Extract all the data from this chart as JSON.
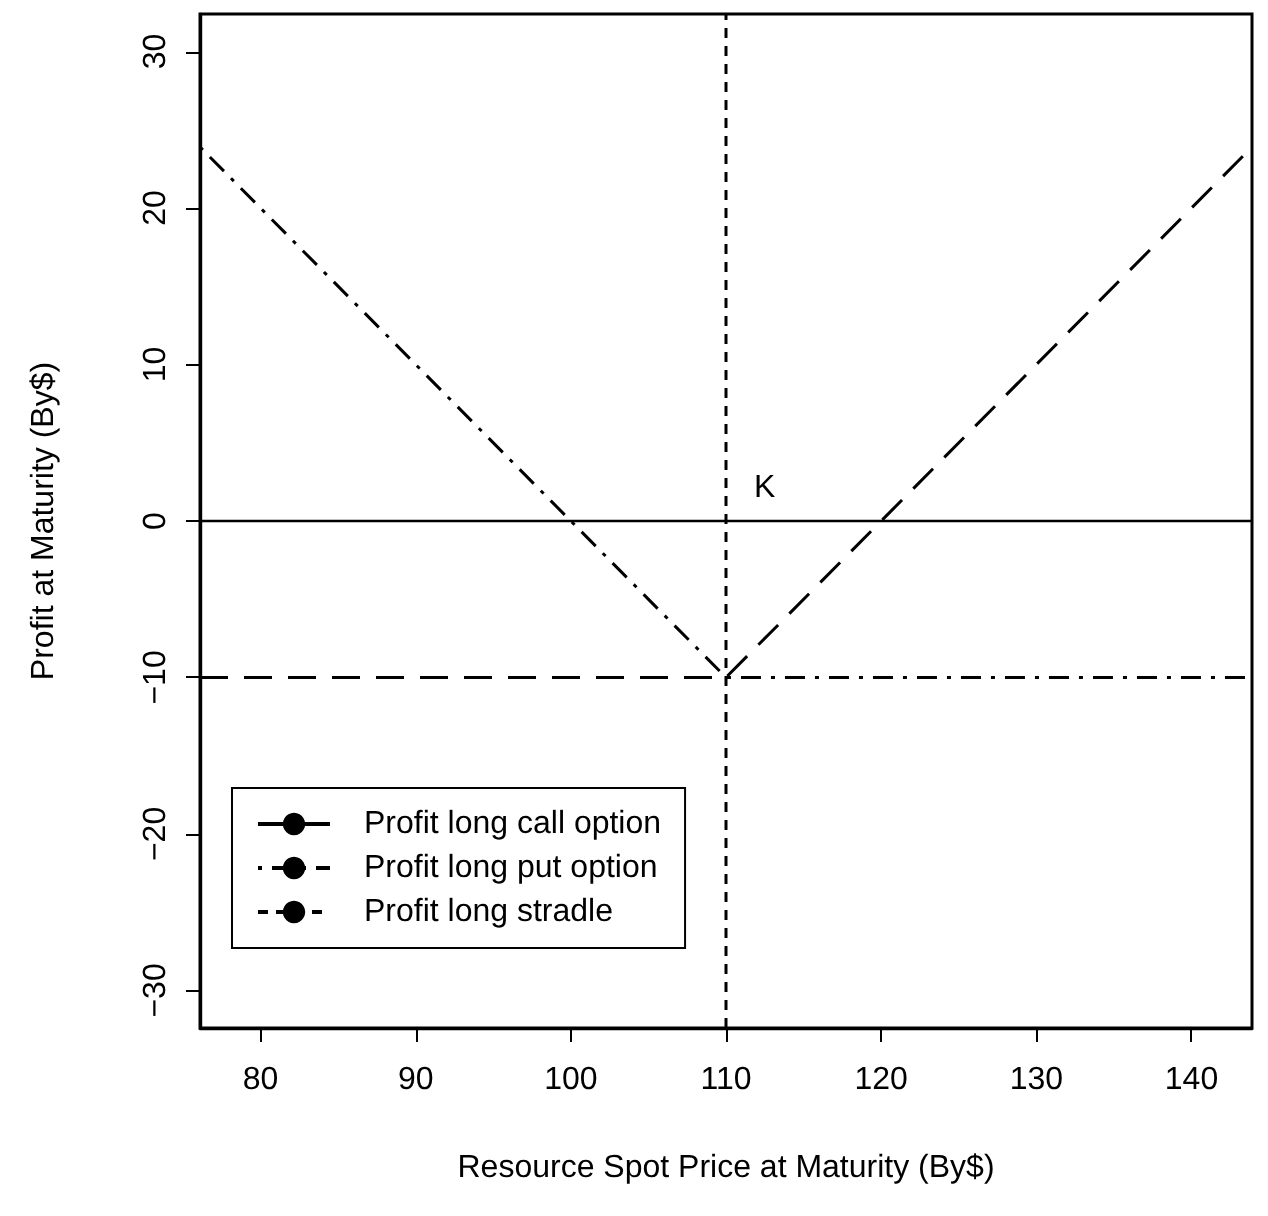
{
  "chart_data": {
    "type": "line",
    "xlabel": "Resource Spot Price at Maturity (By$)",
    "ylabel": "Profit at Maturity (By$)",
    "series": [
      {
        "name": "Profit long call option",
        "color": "#000000",
        "line_style": "dashed",
        "x": [
          76.1,
          110,
          143.9
        ],
        "values": [
          -10,
          -10,
          23.9
        ]
      },
      {
        "name": "Profit long put option",
        "color": "#000000",
        "line_style": "dashdot",
        "x": [
          76.1,
          110,
          143.9
        ],
        "values": [
          23.9,
          -10,
          -10
        ]
      },
      {
        "name": "Profit long stradle",
        "color": "#000000",
        "line_style": "dotted",
        "x": [
          110,
          110
        ],
        "values": [
          -32.4,
          32.4
        ]
      }
    ],
    "ref_lines": [
      {
        "axis": "y",
        "value": 0,
        "color": "#000000",
        "line_style": "solid"
      }
    ],
    "annotations": [
      "K"
    ],
    "xlim": [
      76.1,
      143.9
    ],
    "xticks": [
      80,
      90,
      100,
      110,
      120,
      130,
      140
    ],
    "ylim": [
      -32.4,
      32.4
    ],
    "yticks": [
      -30,
      -20,
      -10,
      0,
      10,
      20,
      30
    ],
    "grid": false,
    "legend": "bottom left",
    "marker": "none"
  }
}
